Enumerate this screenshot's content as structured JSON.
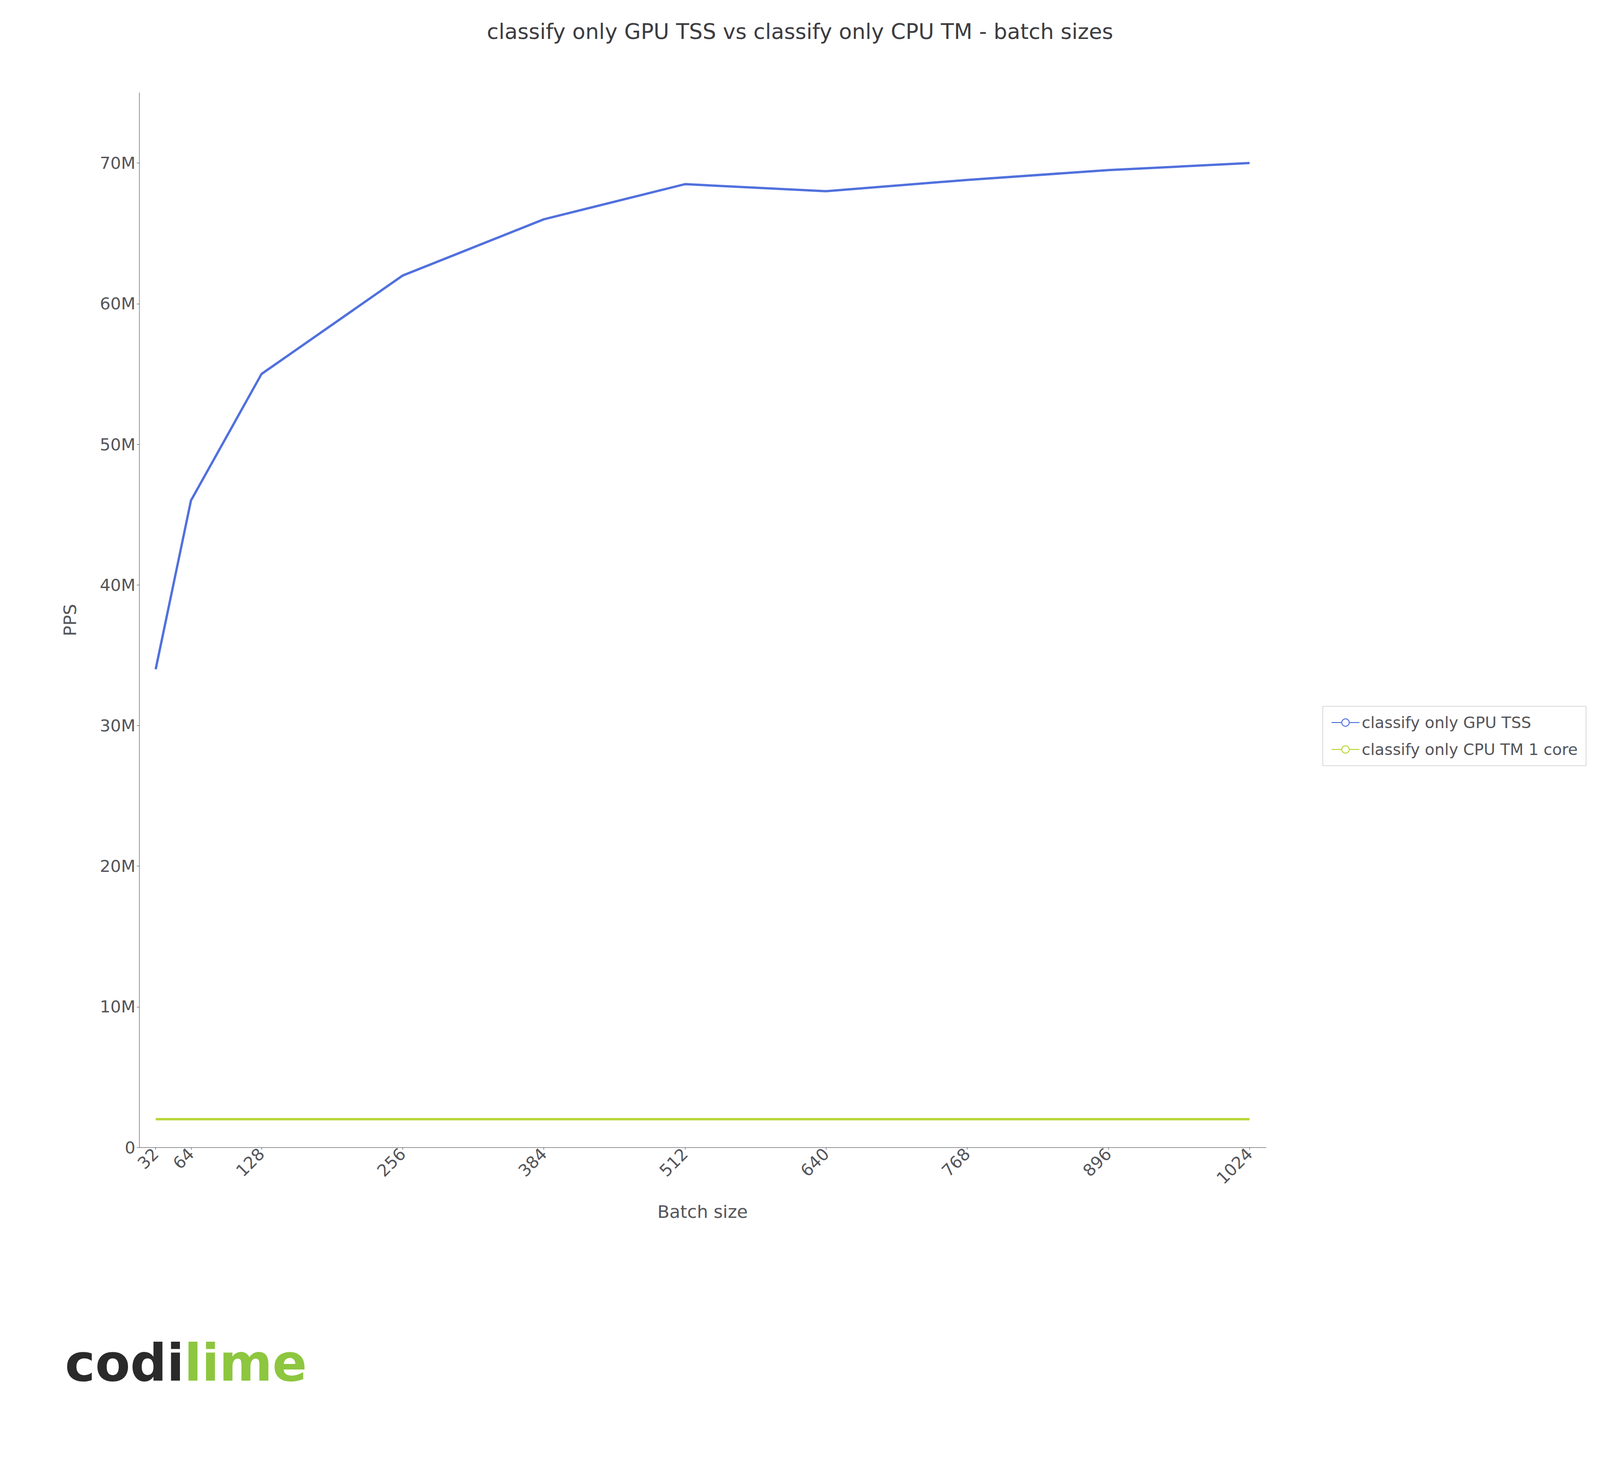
{
  "chart_data": {
    "type": "line",
    "title": "classify only GPU TSS vs classify only CPU TM - batch sizes",
    "xlabel": "Batch size",
    "ylabel": "PPS",
    "x": [
      32,
      64,
      128,
      256,
      384,
      512,
      640,
      768,
      896,
      1024
    ],
    "series": [
      {
        "name": "classify only GPU TSS",
        "values": [
          34000000,
          46000000,
          55000000,
          62000000,
          66000000,
          68500000,
          68000000,
          68800000,
          69500000,
          70000000
        ]
      },
      {
        "name": "classify only CPU TM 1 core",
        "values": [
          2000000,
          2000000,
          2000000,
          2000000,
          2000000,
          2000000,
          2000000,
          2000000,
          2000000,
          2000000
        ]
      }
    ],
    "xlim": [
      17,
      1039
    ],
    "xticks": [
      32,
      64,
      128,
      256,
      384,
      512,
      640,
      768,
      896,
      1024
    ],
    "ylim": [
      0,
      75000000
    ],
    "yticks": [
      0,
      {
        "value": 10000000,
        "label": "10M"
      },
      {
        "value": 20000000,
        "label": "20M"
      },
      {
        "value": 30000000,
        "label": "30M"
      },
      {
        "value": 40000000,
        "label": "40M"
      },
      {
        "value": 50000000,
        "label": "50M"
      },
      {
        "value": 60000000,
        "label": "60M"
      },
      {
        "value": 70000000,
        "label": "70M"
      }
    ],
    "legend": "right",
    "grid": false,
    "annotations": [
      {
        "text": "codi",
        "color": "#2a2a2a"
      },
      {
        "text": "lime",
        "color": "#8dc63f"
      }
    ]
  }
}
